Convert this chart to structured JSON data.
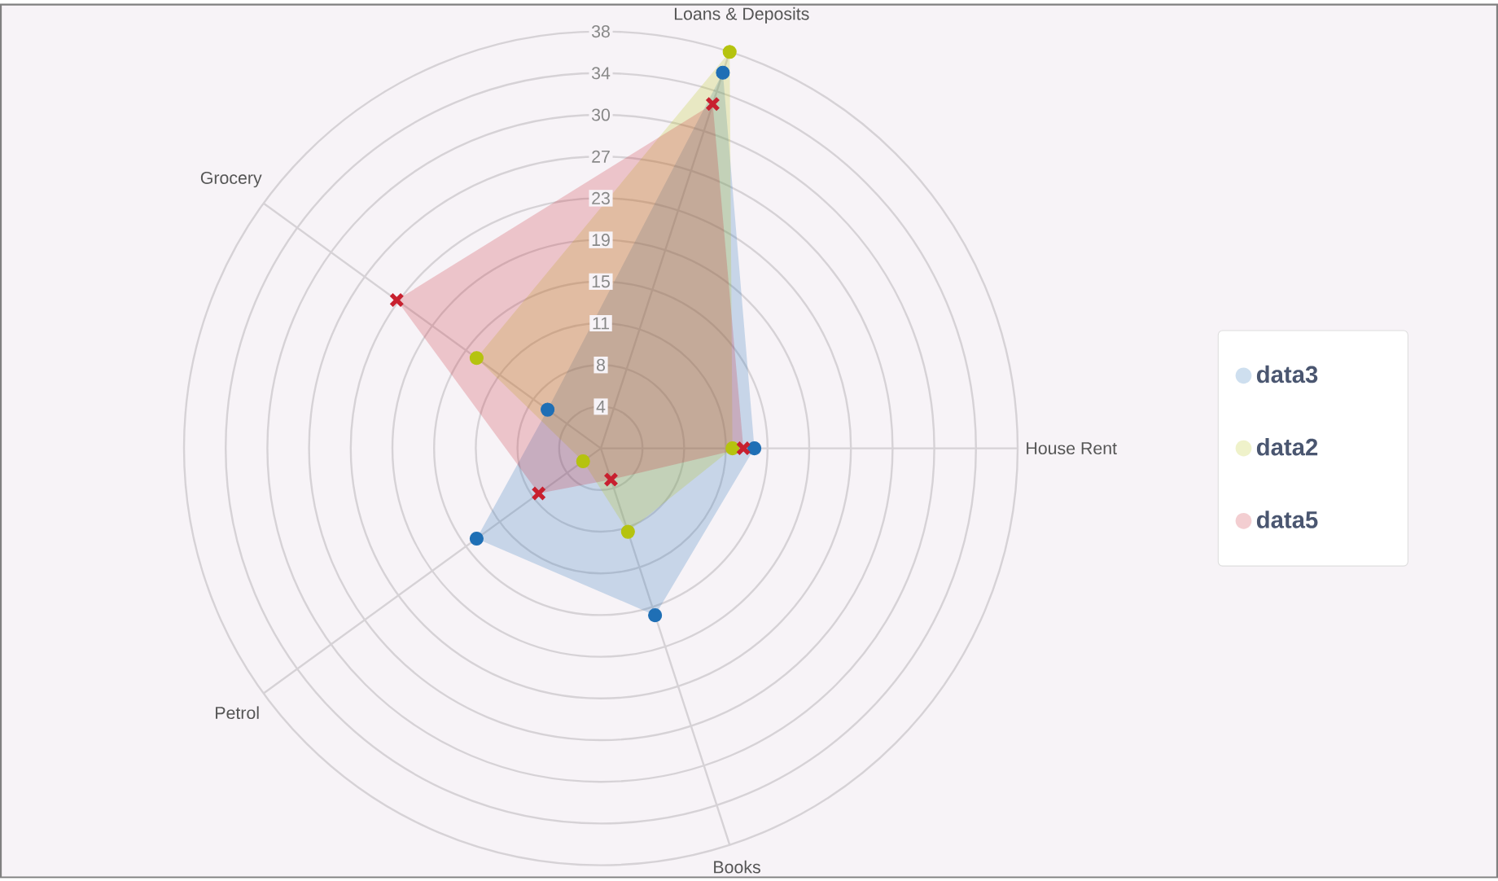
{
  "chart_data": {
    "type": "radar",
    "categories": [
      "Loans & Deposits",
      "House Rent",
      "Books",
      "Petrol",
      "Grocery"
    ],
    "series": [
      {
        "name": "data3",
        "color": "#1f6fb5",
        "marker": "circle",
        "values": [
          36,
          14,
          16,
          14,
          6
        ]
      },
      {
        "name": "data2",
        "color": "#b5c30f",
        "marker": "circle",
        "values": [
          38,
          12,
          8,
          2,
          14
        ]
      },
      {
        "name": "data5",
        "color": "#c8202f",
        "marker": "cross",
        "values": [
          33,
          13,
          3,
          7,
          23
        ]
      }
    ],
    "ylim": [
      0,
      38
    ],
    "yticks": [
      {
        "value": 3.8,
        "label": "4"
      },
      {
        "value": 7.6,
        "label": "8"
      },
      {
        "value": 11.4,
        "label": "11"
      },
      {
        "value": 15.2,
        "label": "15"
      },
      {
        "value": 19,
        "label": "19"
      },
      {
        "value": 22.8,
        "label": "23"
      },
      {
        "value": 26.6,
        "label": "27"
      },
      {
        "value": 30.4,
        "label": "30"
      },
      {
        "value": 34.2,
        "label": "34"
      },
      {
        "value": 38,
        "label": "38"
      }
    ],
    "grid": true,
    "legend": "right"
  }
}
